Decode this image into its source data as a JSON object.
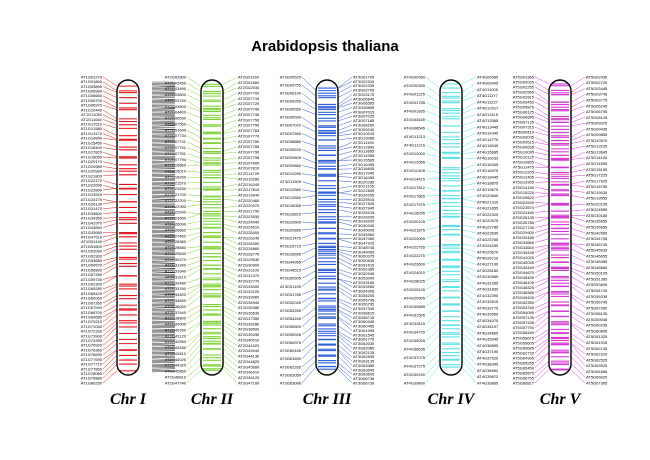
{
  "title": "Arabidopsis thaliana",
  "chromosomes": [
    {
      "name": "Chr I",
      "color": "#e8151b",
      "genes_left": [
        "AT1G01270",
        "AT1G01800",
        "AT1G03895",
        "AT1G05990",
        "AT1G06660",
        "AT1G06700",
        "AT1G06970",
        "AT1G10440",
        "AT1G11050",
        "AT1G11640",
        "AT1G12510",
        "AT1G12580",
        "AT1G13170",
        "AT1G14840",
        "AT1G15450",
        "AT1G16400",
        "AT1G17820",
        "AT1G18050",
        "AT1G20170",
        "AT1G20980",
        "AT1G20990",
        "AT1G21800",
        "AT1G22170",
        "AT1G22690",
        "AT1G23900",
        "AT1G23920",
        "AT1G24170",
        "AT1G26130",
        "AT1G31470",
        "AT1G33600",
        "AT1G34350",
        "AT1G42970",
        "AT1G43850",
        "AT1G43950",
        "AT1G47510",
        "AT1G51140",
        "AT1G51600",
        "AT1G52090",
        "AT1G52300",
        "AT1G53680",
        "AT1G54570",
        "AT1G56890",
        "AT1G57280",
        "AT1G59730",
        "AT1G62300",
        "AT1G65280",
        "AT1G65420",
        "AT1G66060",
        "AT1G67260",
        "AT1G67940",
        "AT1G68700",
        "AT1G69680",
        "AT1G70210",
        "AT1G71040",
        "AT1G72330",
        "AT1G73900",
        "AT1G74390",
        "AT1G75920",
        "AT1G76360",
        "AT1G76690",
        "AT1G77690",
        "AT1G77710",
        "AT1G77850",
        "AT1G78060",
        "AT1G79880",
        "AT1G80250"
      ]
    },
    {
      "name": "Chr II",
      "color": "#7fd437",
      "genes_left": [
        "AT2G02900",
        "AT2G03450",
        "AT2G03490",
        "AT2G03600",
        "AT2G03760",
        "AT2G03900",
        "AT2G04400",
        "AT2G06530",
        "AT2G07550",
        "AT2G07640",
        "AT2G07734",
        "AT2G07741",
        "AT2G07751",
        "AT2G07761",
        "AT2G07794",
        "AT2G16860",
        "AT2G18010",
        "AT2G18260",
        "AT2G21570",
        "AT2G21630",
        "AT2G21700",
        "AT2G22200",
        "AT2G22390",
        "AT2G22940",
        "AT2G23650",
        "AT2G26090",
        "AT2G26860",
        "AT2G27450",
        "AT2G28380",
        "AT2G28680",
        "AT2G29630",
        "AT2G30270",
        "AT2G31340",
        "AT2G31640",
        "AT2G33110",
        "AT2G33480",
        "AT2G33760",
        "AT2G34400",
        "AT2G34650",
        "AT2G36050",
        "AT2G37540",
        "AT2G38800",
        "AT2G39000",
        "AT2G40760",
        "AT2G41120",
        "AT2G42550",
        "AT2G43180",
        "AT2G43810",
        "AT2G44020",
        "AT2G44320",
        "AT2G45860",
        "AT2G46810",
        "AT2G47740"
      ],
      "genes_right": [
        "AT2G01160",
        "AT2G01660",
        "AT2G02930",
        "AT2G07700",
        "AT2G07716",
        "AT2G07729",
        "AT2G07740",
        "AT2G07746",
        "AT2G07750",
        "AT2G07755",
        "AT2G07763",
        "AT2G07770",
        "AT2G07780",
        "AT2G07788",
        "AT2G07790",
        "AT2G07798",
        "AT2G07800",
        "AT2G07810",
        "AT2G14720",
        "AT2G15280",
        "AT2G16240",
        "AT2G17810",
        "AT2G19640",
        "AT2G20460",
        "AT2G20970",
        "AT2G21790",
        "AT2G23530",
        "AT2G24040",
        "AT2G24510",
        "AT2G25400",
        "AT2G26240",
        "AT2G26300",
        "AT2G26860",
        "AT2G28770",
        "AT2G29630",
        "AT2G30900",
        "AT2G31100",
        "AT2G31370",
        "AT2G32770",
        "AT2G33000",
        "AT2G33220",
        "AT2G33960",
        "AT2G34940",
        "AT2G35380",
        "AT2G35630",
        "AT2G37350",
        "AT2G38280",
        "AT2G38500",
        "AT2G39330",
        "AT2G40010",
        "AT2G41520",
        "AT2G43040",
        "AT2G44130",
        "AT2G44820",
        "AT2G45660",
        "AT2G46010",
        "AT2G46120",
        "AT2G47100"
      ]
    },
    {
      "name": "Chr III",
      "color": "#2f5fd9",
      "genes_left": [
        "AT3G05525",
        "AT3G05755",
        "AT3G06190",
        "AT3G06335",
        "AT3G06550",
        "AT3G06590",
        "AT3G07020",
        "AT3G07565",
        "AT3G08880",
        "AT3G09520",
        "AT3G09805",
        "AT3G09860",
        "AT3G10290",
        "AT3G11505",
        "AT3G12580",
        "AT3G13550",
        "AT3G16055",
        "AT3G16815",
        "AT3G20605",
        "AT3G20885",
        "AT3G21475",
        "AT3G25715",
        "AT3G28695",
        "AT3G44955",
        "AT3G48515",
        "AT3G50505",
        "AT3G51105",
        "AT3G51785",
        "AT3G52045",
        "AT3G53255",
        "AT3G54245",
        "AT3G55500",
        "AT3G55926",
        "AT3G60075",
        "AT3G60435",
        "AT3G61690",
        "AT3G62285",
        "AT3G63050",
        "AT3G63096"
      ],
      "genes_right": [
        "AT3G01705",
        "AT3G02315",
        "AT3G02335",
        "AT3G02705",
        "AT3G03175",
        "AT3G05845",
        "AT3G06565",
        "AT3G06895",
        "AT3G07015",
        "AT3G07025",
        "AT3G07185",
        "AT3G08260",
        "AT3G09240",
        "AT3G10015",
        "AT3G10085",
        "AT3G11195",
        "AT3G12895",
        "AT3G13665",
        "AT3G14395",
        "AT3G15565",
        "AT3G16495",
        "AT3G16605",
        "AT3G17040",
        "AT3G18455",
        "AT3G20285",
        "AT3G21155",
        "AT3G22805",
        "AT3G24255",
        "AT3G25915",
        "AT3G27825",
        "AT3G27945",
        "AT3G28215",
        "AT3G28205",
        "AT3G28905",
        "AT3G30345",
        "AT3G45005",
        "AT3G45965",
        "AT3G47065",
        "AT3G47915",
        "AT3G48745",
        "AT3G49065",
        "AT3G50375",
        "AT3G50835",
        "AT3G51615",
        "AT3G52385",
        "AT3G52945",
        "AT3G53000",
        "AT3G53165",
        "AT3G53950",
        "AT3G54305",
        "AT3G55205",
        "AT3G55745",
        "AT3G56795",
        "AT3G57340",
        "AT3G58615",
        "AT3G58715",
        "AT3G60345",
        "AT3G60455",
        "AT3G61095",
        "AT3G61545",
        "AT3G61775",
        "AT3G62035",
        "AT3G62085",
        "AT3G62135",
        "AT3G62695",
        "AT3G63135",
        "AT3G63385",
        "AT3G63595",
        "AT3G63605",
        "AT3G66736",
        "AT3G66739"
      ]
    },
    {
      "name": "Chr IV",
      "color": "#5ce1e6",
      "genes_left": [
        "AT4G00080",
        "AT4G00355",
        "AT4G01225",
        "AT4G01785",
        "AT4G01895",
        "AT4G03435",
        "AT4G08545",
        "AT4G11213",
        "AT4G11216",
        "AT4G12000",
        "AT4G12065",
        "AT4G12405",
        "AT4G14415",
        "AT4G17812",
        "AT4G17865",
        "AT4G17975",
        "AT4G18255",
        "AT4G20105",
        "AT4G21875",
        "AT4G22005",
        "AT4G22765",
        "AT4G22275",
        "AT4G23600",
        "AT4G24015",
        "AT4G28025",
        "AT4G29125",
        "AT4G29905",
        "AT4G30885",
        "AT4G31595",
        "AT4G33115",
        "AT4G34720",
        "AT4G35025",
        "AT4G36635",
        "AT4G37075",
        "AT4G37275",
        "AT4G39190",
        "AT4G39800"
      ],
      "genes_right": [
        "AT4G00085",
        "AT4G03405",
        "AT4G11005",
        "AT4G11177",
        "AT4G11227",
        "AT4G12017",
        "AT4G13115",
        "AT4G13365",
        "AT4G13445",
        "AT4G14345",
        "AT4G14770",
        "AT4G15045",
        "AT4G15685",
        "AT4G16233",
        "AT4G16305",
        "AT4G16975",
        "AT4G18445",
        "AT4G18875",
        "AT4G19675",
        "AT4G20840",
        "AT4G21310",
        "AT4G21655",
        "AT4G22320",
        "AT4G22675",
        "AT4G22785",
        "AT4G23635",
        "AT4G23765",
        "AT4G24290",
        "AT4G25670",
        "AT4G26710",
        "AT4G27100",
        "AT4G28180",
        "AT4G30960",
        "AT4G31265",
        "AT4G31830",
        "AT4G32390",
        "AT4G32615",
        "AT4G32775",
        "AT4G33565",
        "AT4G34075",
        "AT4G34197",
        "AT4G34865",
        "AT4G35345",
        "AT4G36895",
        "AT4G37190",
        "AT4G37520",
        "AT4G38345",
        "AT4G38962",
        "AT4G39672",
        "AT4G39865"
      ]
    },
    {
      "name": "Chr V",
      "color": "#d63bd6",
      "genes_left": [
        "AT5G01365",
        "AT5G02025",
        "AT5G02255",
        "AT5G02565",
        "AT5G02815",
        "AT5G03450",
        "AT5G05875",
        "AT5G06125",
        "AT5G06685",
        "AT5G07135",
        "AT5G07315",
        "AT5G08110",
        "AT5G09035",
        "AT5G09515",
        "AT5G09535",
        "AT5G10095",
        "AT5G10125",
        "AT5G10805",
        "AT5G11475",
        "AT5G12205",
        "AT5G12405",
        "AT5G13305",
        "AT5G14155",
        "AT5G15225",
        "AT5G20620",
        "AT5G22530",
        "AT5G23570",
        "AT5G24160",
        "AT5G25135",
        "AT5G26785",
        "AT5G27735",
        "AT5G29900",
        "AT5G32495",
        "AT5G33865",
        "AT5G33540",
        "AT5G39435",
        "AT5G41025",
        "AT5G42045",
        "AT5G43440",
        "AT5G44675",
        "AT5G45495",
        "AT5G46105",
        "AT5G48325",
        "AT5G48385",
        "AT5G49425",
        "AT5G52350",
        "AT5G53765",
        "AT5G54095",
        "AT5G57135",
        "AT5G57335",
        "AT5G57790",
        "AT5G58180",
        "AT5G58675",
        "AT5G59605",
        "AT5G59685",
        "AT5G62720",
        "AT5G64905",
        "AT5G65255",
        "AT5G65450",
        "AT5G65875",
        "AT5G66755",
        "AT5G66817"
      ],
      "genes_right": [
        "AT5G02435",
        "AT5G02725",
        "AT5G03445",
        "AT5G03745",
        "AT5G03775",
        "AT5G05245",
        "AT5G06795",
        "AT5G08125",
        "AT5G09375",
        "AT5G09435",
        "AT5G09855",
        "AT5G10570",
        "AT5G13225",
        "AT5G13645",
        "AT5G14145",
        "AT5G14905",
        "AT5G15155",
        "AT5G17225",
        "AT5G17625",
        "AT5G18755",
        "AT5G19035",
        "AT5G19555",
        "AT5G20235",
        "AT5G24555",
        "AT5G30185",
        "AT5G35655",
        "AT5G36655",
        "AT5G42665",
        "AT5G44705",
        "AT5G45745",
        "AT5G45635",
        "AT5G46655",
        "AT5G48495",
        "AT5G48665",
        "AT5G50105",
        "AT5G51385",
        "AT5G53605",
        "AT5G54725",
        "AT5G55335",
        "AT5G56745",
        "AT5G57050",
        "AT5G58135",
        "AT5G59045",
        "AT5G60235",
        "AT5G60805",
        "AT5G61325",
        "AT5G61915",
        "AT5G62135",
        "AT5G62310",
        "AT5G62525",
        "AT5G63525",
        "AT5G64565",
        "AT5G66025",
        "AT5G67305"
      ]
    }
  ]
}
